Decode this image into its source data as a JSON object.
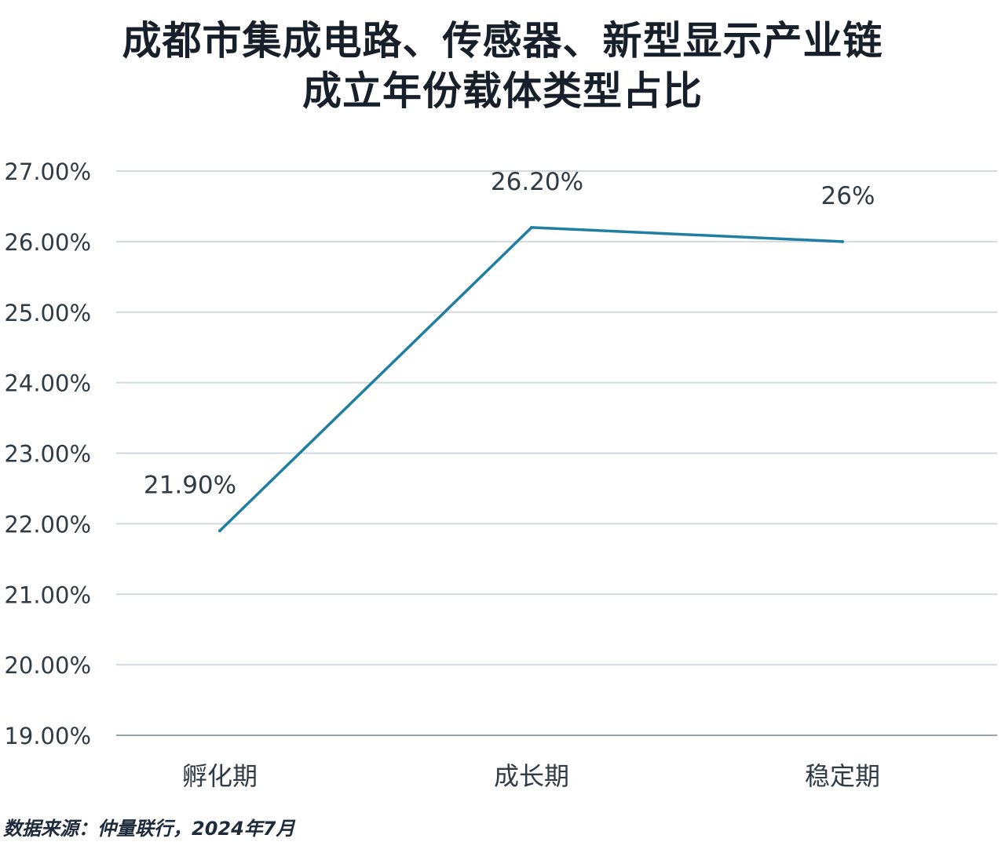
{
  "title_lines": [
    "成都市集成电路、传感器、新型显示产业链",
    "成立年份载体类型占比"
  ],
  "source": "数据来源：仲量联行，2024年7月",
  "colors": {
    "line": "#1f7ea1",
    "grid": "#d3dadd",
    "axis": "#9aa3a8",
    "tick_text": "#2f3b45",
    "label_text": "#2f3b45"
  },
  "chart_data": {
    "type": "line",
    "categories": [
      "孵化期",
      "成长期",
      "稳定期"
    ],
    "series": [
      {
        "values": [
          21.9,
          26.2,
          26.0
        ],
        "data_labels": [
          "21.90%",
          "26.20%",
          "26%"
        ]
      }
    ],
    "ylim": [
      19,
      27
    ],
    "yticks": [
      19,
      20,
      21,
      22,
      23,
      24,
      25,
      26,
      27
    ],
    "ytick_labels": [
      "19.00%",
      "20.00%",
      "21.00%",
      "22.00%",
      "23.00%",
      "24.00%",
      "25.00%",
      "26.00%",
      "27.00%"
    ],
    "grid": true,
    "xlabel": "",
    "ylabel": ""
  }
}
